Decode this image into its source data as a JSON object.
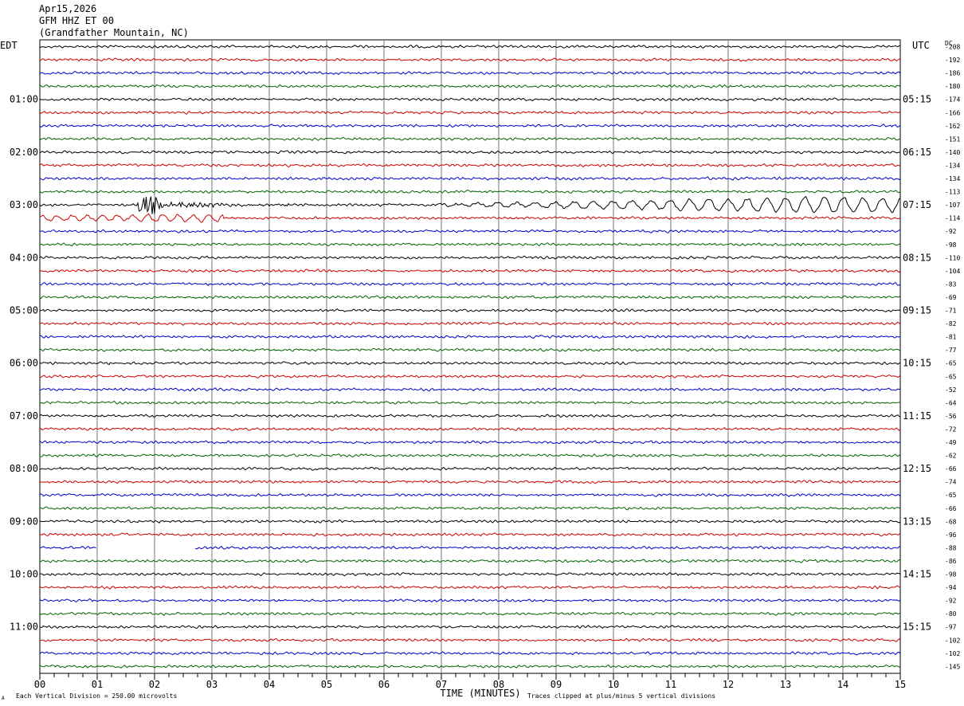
{
  "header": {
    "date": "Apr15,2026",
    "station": "GFM HHZ ET 00",
    "location": "(Grandfather Mountain, NC)"
  },
  "labels": {
    "left_tz": "EDT",
    "right_tz": "UTC",
    "dc": "DC",
    "xlabel": "TIME (MINUTES)",
    "scale_note": "Each Vertical Division =  250.00 microvolts",
    "clip_note": "Traces clipped at plus/minus 5 vertical divisions",
    "corner_mark": "A"
  },
  "chart_data": {
    "type": "line",
    "xlim": [
      0,
      15
    ],
    "x_ticks": [
      "00",
      "01",
      "02",
      "03",
      "04",
      "05",
      "06",
      "07",
      "08",
      "09",
      "10",
      "11",
      "12",
      "13",
      "14",
      "15"
    ],
    "rows_per_hour": 4,
    "left_hour_labels": [
      "01:00",
      "02:00",
      "03:00",
      "04:00",
      "05:00",
      "06:00",
      "07:00",
      "08:00",
      "09:00",
      "10:00",
      "11:00"
    ],
    "right_hour_labels": [
      "05:15",
      "06:15",
      "07:15",
      "08:15",
      "09:15",
      "10:15",
      "11:15",
      "12:15",
      "13:15",
      "14:15",
      "15:15"
    ],
    "trace_colors": [
      "#000000",
      "#cc0000",
      "#0000cc",
      "#006400"
    ],
    "dc_offsets": [
      "-208",
      "-192",
      "-186",
      "-180",
      "-174",
      "-166",
      "-162",
      "-151",
      "-140",
      "-134",
      "-134",
      "-113",
      "-107",
      "-114",
      "-92",
      "-98",
      "-110",
      "-104",
      "-83",
      "-69",
      "-71",
      "-82",
      "-81",
      "-77",
      "-65",
      "-65",
      "-52",
      "-64",
      "-56",
      "-72",
      "-49",
      "-62",
      "-66",
      "-74",
      "-65",
      "-66",
      "-68",
      "-96",
      "-88",
      "-86",
      "-98",
      "-94",
      "-92",
      "-80",
      "-97",
      "-102",
      "-102",
      "-145"
    ],
    "events": [
      {
        "description": "earthquake arrival",
        "row": 12,
        "minute_start": 1.7
      },
      {
        "description": "data gap",
        "row": 38,
        "minute_start": 1.0,
        "minute_end": 2.7
      }
    ]
  }
}
